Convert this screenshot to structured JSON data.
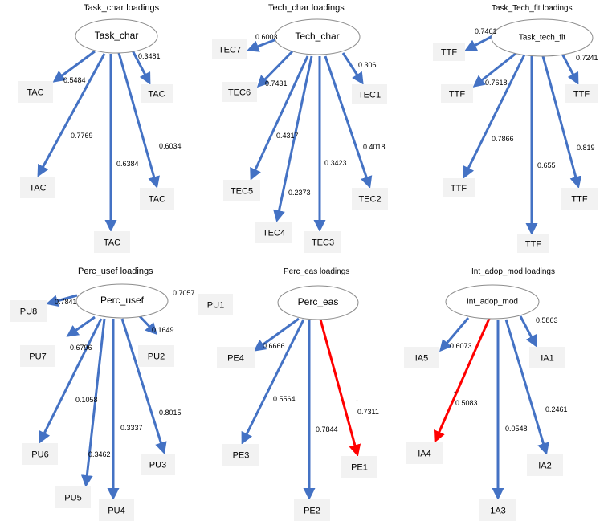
{
  "colors": {
    "positive_edge": "#4472c4",
    "negative_edge": "#ff0000",
    "box_fill": "#f2f2f2",
    "ellipse_stroke": "#8c8c8c"
  },
  "diagrams": [
    {
      "title": "Task_char loadings",
      "center": "Task_char",
      "loadings": [
        {
          "label": "TAC",
          "weight": "0.3481"
        },
        {
          "label": "TAC",
          "weight": "0.5484"
        },
        {
          "label": "TAC",
          "weight": "0.7769"
        },
        {
          "label": "TAC",
          "weight": "0.6384"
        },
        {
          "label": "TAC",
          "weight": "0.6034"
        }
      ]
    },
    {
      "title": "Tech_char loadings",
      "center": "Tech_char",
      "loadings": [
        {
          "label": "TEC7",
          "weight": "0.6003"
        },
        {
          "label": "TEC1",
          "weight": "0.306"
        },
        {
          "label": "TEC6",
          "weight": "0.7431"
        },
        {
          "label": "TEC5",
          "weight": "0.4317"
        },
        {
          "label": "TEC4",
          "weight": "0.2373"
        },
        {
          "label": "TEC3",
          "weight": "0.3423"
        },
        {
          "label": "TEC2",
          "weight": "0.4018"
        }
      ]
    },
    {
      "title": "Task_Tech_fit  loadings",
      "center": "Task_tech_fit",
      "loadings": [
        {
          "label": "TTF",
          "weight": "0.7461"
        },
        {
          "label": "TTF",
          "weight": "0.7241"
        },
        {
          "label": "TTF",
          "weight": "0.7618"
        },
        {
          "label": "TTF",
          "weight": "0.7866"
        },
        {
          "label": "TTF",
          "weight": "0.655"
        },
        {
          "label": "TTF",
          "weight": "0.819"
        }
      ]
    },
    {
      "title": "Perc_usef loadings",
      "center": "Perc_usef",
      "loadings": [
        {
          "label": "PU8",
          "weight": "0.7841"
        },
        {
          "label": "PU1",
          "weight": "0.7057"
        },
        {
          "label": "PU7",
          "weight": "0.6796"
        },
        {
          "label": "PU2",
          "weight": "0.1649"
        },
        {
          "label": "PU6",
          "weight": "0.1058"
        },
        {
          "label": "PU5",
          "weight": "0.3462"
        },
        {
          "label": "PU4",
          "weight": "0.3337"
        },
        {
          "label": "PU3",
          "weight": "0.8015"
        }
      ]
    },
    {
      "title": "Perc_eas  loadings",
      "center": "Perc_eas",
      "loadings": [
        {
          "label": "PE4",
          "weight": "0.6666"
        },
        {
          "label": "PE3",
          "weight": "0.5564"
        },
        {
          "label": "PE2",
          "weight": "0.7844"
        },
        {
          "label": "PE1",
          "weight": "-0.7311",
          "sign": "-",
          "value": "0.7311"
        }
      ]
    },
    {
      "title": "Int_adop_mod  loadings",
      "center": "Int_adop_mod",
      "loadings": [
        {
          "label": "IA5",
          "weight": "0.6073"
        },
        {
          "label": "IA1",
          "weight": "0.5863"
        },
        {
          "label": "IA4",
          "weight": "-0.5083",
          "sign": "-",
          "value": "0.5083"
        },
        {
          "label": "1A3",
          "weight": "0.0548"
        },
        {
          "label": "IA2",
          "weight": "0.2461"
        }
      ]
    }
  ]
}
